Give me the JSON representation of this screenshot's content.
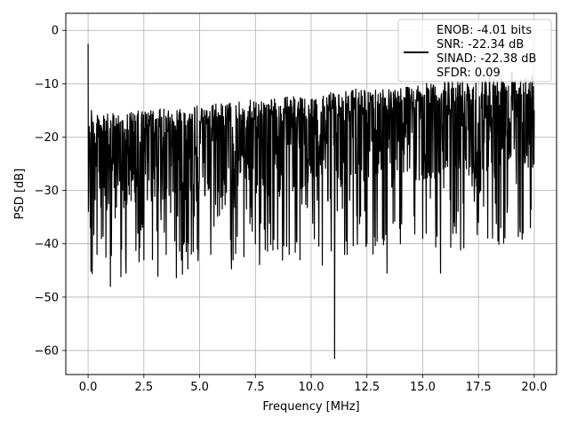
{
  "chart_data": {
    "type": "line",
    "xlabel": "Frequency [MHz]",
    "ylabel": "PSD [dB]",
    "xlim": [
      -1.0,
      21.0
    ],
    "ylim": [
      -64.5,
      3.2
    ],
    "x_ticks": [
      0.0,
      2.5,
      5.0,
      7.5,
      10.0,
      12.5,
      15.0,
      17.5,
      20.0
    ],
    "x_tick_labels": [
      "0.0",
      "2.5",
      "5.0",
      "7.5",
      "10.0",
      "12.5",
      "15.0",
      "17.5",
      "20.0"
    ],
    "y_ticks": [
      0,
      -10,
      -20,
      -30,
      -40,
      -50,
      -60
    ],
    "y_tick_labels": [
      "0",
      "−10",
      "−20",
      "−30",
      "−40",
      "−50",
      "−60"
    ],
    "grid": true,
    "legend_position": "top-right",
    "legend_entries": [
      "ENOB: -4.01 bits",
      "SNR: -22.34 dB",
      "SINAD: -22.38 dB",
      "SFDR: 0.09"
    ],
    "line_color": "#000000",
    "series": [
      {
        "x": [
          0.0,
          0.05,
          0.1,
          0.15,
          0.2,
          0.3,
          0.4,
          0.5,
          0.6,
          0.7,
          0.8,
          0.9,
          1.0,
          1.2,
          1.5,
          1.7,
          2.0,
          2.5,
          3.0,
          3.5,
          4.0,
          4.5,
          5.0,
          5.5,
          6.0,
          6.5,
          7.0,
          7.5,
          8.0,
          8.5,
          9.0,
          9.5,
          10.0,
          10.5,
          11.0,
          11.05,
          11.1,
          11.5,
          12.0,
          12.5,
          13.0,
          13.4,
          13.5,
          14.0,
          14.5,
          15.0,
          15.5,
          15.8,
          16.0,
          16.5,
          17.0,
          17.5,
          18.0,
          18.5,
          19.0,
          19.5,
          20.0
        ],
        "y": [
          -2.5,
          -18.0,
          -37.0,
          -15.0,
          -30.0,
          -20.0,
          -42.0,
          -17.0,
          -39.0,
          -16.0,
          -42.5,
          -19.0,
          -48.0,
          -18.0,
          -41.0,
          -45.5,
          -17.0,
          -43.0,
          -19.0,
          -42.0,
          -18.0,
          -40.0,
          -17.0,
          -42.0,
          -16.0,
          -43.0,
          -15.0,
          -40.0,
          -14.0,
          -41.0,
          -15.0,
          -43.0,
          -13.0,
          -44.0,
          -12.0,
          -61.5,
          -14.0,
          -42.0,
          -11.0,
          -40.0,
          -12.0,
          -45.5,
          -13.0,
          -40.0,
          -11.0,
          -39.0,
          -12.0,
          -45.5,
          -10.0,
          -38.0,
          -10.0,
          -36.0,
          -9.0,
          -37.0,
          -8.0,
          -38.0,
          -15.0
        ]
      }
    ]
  }
}
